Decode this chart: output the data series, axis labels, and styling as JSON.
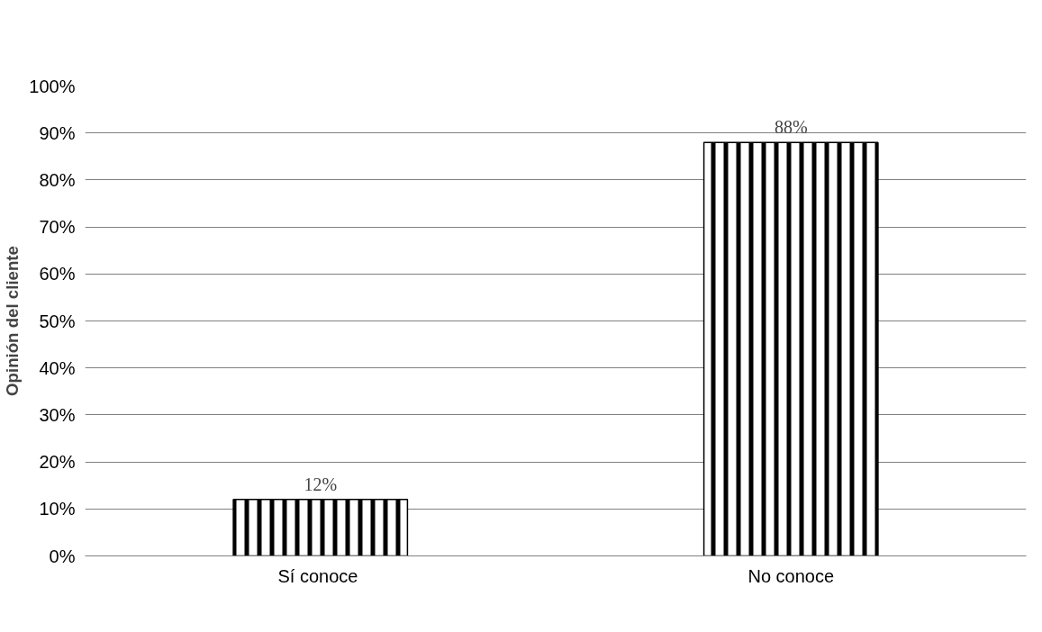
{
  "chart_data": {
    "type": "bar",
    "ylabel": "Opinión del cliente",
    "categories": [
      "Sí  conoce",
      "No conoce"
    ],
    "values": [
      12,
      88
    ],
    "value_labels": [
      "12%",
      "88%"
    ],
    "color": "#000000",
    "ylim": [
      0,
      100
    ],
    "yticks": [
      {
        "value": 0,
        "label": "0%"
      },
      {
        "value": 10,
        "label": "10%"
      },
      {
        "value": 20,
        "label": "20%"
      },
      {
        "value": 30,
        "label": "30%"
      },
      {
        "value": 40,
        "label": "40%"
      },
      {
        "value": 50,
        "label": "50%"
      },
      {
        "value": 60,
        "label": "60%"
      },
      {
        "value": 70,
        "label": "70%"
      },
      {
        "value": 80,
        "label": "80%"
      },
      {
        "value": 90,
        "label": "90%"
      },
      {
        "value": 100,
        "label": "100%"
      }
    ],
    "grid": "y"
  }
}
